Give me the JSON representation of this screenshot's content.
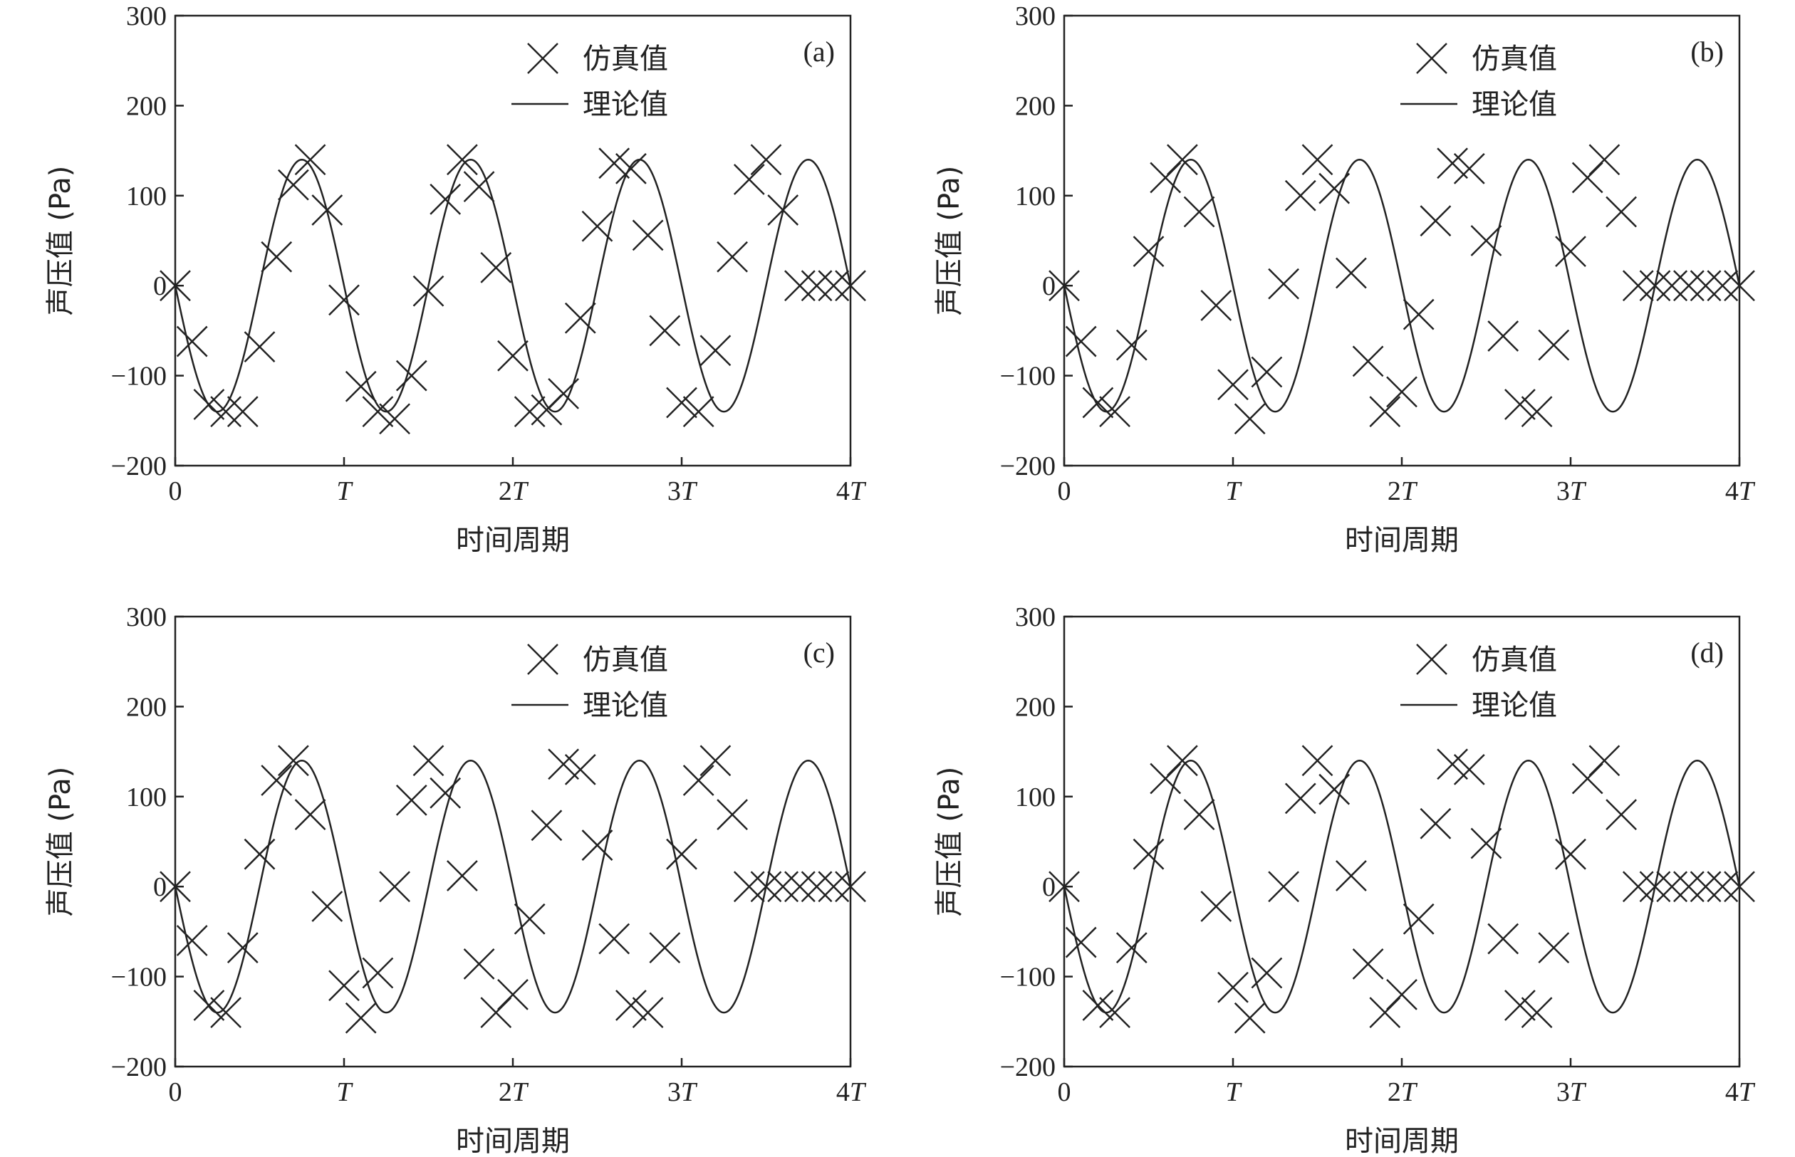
{
  "chart_data": [
    {
      "type": "line",
      "panel_label": "(a)",
      "xlabel": "时间周期",
      "ylabel": "声压值 (Pa)",
      "xlim": [
        0,
        4
      ],
      "ylim": [
        -200,
        300
      ],
      "x_ticks": [
        {
          "value": 0,
          "coef": "0",
          "sym": ""
        },
        {
          "value": 1,
          "coef": "",
          "sym": "T"
        },
        {
          "value": 2,
          "coef": "2",
          "sym": "T"
        },
        {
          "value": 3,
          "coef": "3",
          "sym": "T"
        },
        {
          "value": 4,
          "coef": "4",
          "sym": "T"
        }
      ],
      "y_ticks": [
        300,
        200,
        100,
        0,
        -100,
        -200
      ],
      "y_tick_labels": [
        "300",
        "200",
        "100",
        "0",
        "−100",
        "−200"
      ],
      "legend": {
        "position": "top-right"
      },
      "grid": false,
      "series": [
        {
          "name": "仿真值",
          "kind": "markers",
          "marker": "x",
          "x": [
            0,
            0.1,
            0.2,
            0.3,
            0.4,
            0.5,
            0.6,
            0.7,
            0.8,
            0.9,
            1.0,
            1.1,
            1.2,
            1.3,
            1.4,
            1.5,
            1.6,
            1.7,
            1.8,
            1.9,
            2.0,
            2.1,
            2.2,
            2.3,
            2.4,
            2.5,
            2.6,
            2.7,
            2.8,
            2.9,
            3.0,
            3.1,
            3.2,
            3.3,
            3.4,
            3.5,
            3.6,
            3.7,
            3.8,
            3.9,
            4.0
          ],
          "y": [
            0,
            -62,
            -132,
            -140,
            -140,
            -68,
            32,
            112,
            140,
            84,
            -16,
            -112,
            -140,
            -148,
            -100,
            -6,
            96,
            140,
            110,
            20,
            -78,
            -140,
            -138,
            -120,
            -36,
            66,
            136,
            130,
            56,
            -50,
            -130,
            -140,
            -72,
            32,
            118,
            140,
            84,
            0,
            0,
            0,
            0
          ]
        },
        {
          "name": "理论值",
          "kind": "line",
          "amplitude": 140,
          "phase_deg": 0,
          "period": 1
        }
      ]
    },
    {
      "type": "line",
      "panel_label": "(b)",
      "xlabel": "时间周期",
      "ylabel": "声压值 (Pa)",
      "xlim": [
        0,
        4
      ],
      "ylim": [
        -200,
        300
      ],
      "x_ticks": [
        {
          "value": 0,
          "coef": "0",
          "sym": ""
        },
        {
          "value": 1,
          "coef": "",
          "sym": "T"
        },
        {
          "value": 2,
          "coef": "2",
          "sym": "T"
        },
        {
          "value": 3,
          "coef": "3",
          "sym": "T"
        },
        {
          "value": 4,
          "coef": "4",
          "sym": "T"
        }
      ],
      "y_ticks": [
        300,
        200,
        100,
        0,
        -100,
        -200
      ],
      "y_tick_labels": [
        "300",
        "200",
        "100",
        "0",
        "−100",
        "−200"
      ],
      "legend": {
        "position": "top-right"
      },
      "grid": false,
      "series": [
        {
          "name": "仿真值",
          "kind": "markers",
          "marker": "x",
          "x": [
            0,
            0.1,
            0.2,
            0.3,
            0.4,
            0.5,
            0.6,
            0.7,
            0.8,
            0.9,
            1.0,
            1.1,
            1.2,
            1.3,
            1.4,
            1.5,
            1.6,
            1.7,
            1.8,
            1.9,
            2.0,
            2.1,
            2.2,
            2.3,
            2.4,
            2.5,
            2.6,
            2.7,
            2.8,
            2.9,
            3.0,
            3.1,
            3.2,
            3.3,
            3.4,
            3.5,
            3.6,
            3.7,
            3.8,
            3.9,
            4.0
          ],
          "y": [
            0,
            -62,
            -130,
            -140,
            -66,
            38,
            120,
            140,
            82,
            -22,
            -110,
            -148,
            -96,
            2,
            100,
            140,
            108,
            14,
            -84,
            -140,
            -118,
            -32,
            72,
            136,
            130,
            50,
            -56,
            -132,
            -140,
            -66,
            38,
            120,
            140,
            82,
            0,
            0,
            0,
            0,
            0,
            0,
            0
          ]
        },
        {
          "name": "理论值",
          "kind": "line",
          "amplitude": 140,
          "phase_deg": 0,
          "period": 1
        }
      ]
    },
    {
      "type": "line",
      "panel_label": "(c)",
      "xlabel": "时间周期",
      "ylabel": "声压值 (Pa)",
      "xlim": [
        0,
        4
      ],
      "ylim": [
        -200,
        300
      ],
      "x_ticks": [
        {
          "value": 0,
          "coef": "0",
          "sym": ""
        },
        {
          "value": 1,
          "coef": "",
          "sym": "T"
        },
        {
          "value": 2,
          "coef": "2",
          "sym": "T"
        },
        {
          "value": 3,
          "coef": "3",
          "sym": "T"
        },
        {
          "value": 4,
          "coef": "4",
          "sym": "T"
        }
      ],
      "y_ticks": [
        300,
        200,
        100,
        0,
        -100,
        -200
      ],
      "y_tick_labels": [
        "300",
        "200",
        "100",
        "0",
        "−100",
        "−200"
      ],
      "legend": {
        "position": "top-right"
      },
      "grid": false,
      "series": [
        {
          "name": "仿真值",
          "kind": "markers",
          "marker": "x",
          "x": [
            0,
            0.1,
            0.2,
            0.3,
            0.4,
            0.5,
            0.6,
            0.7,
            0.8,
            0.9,
            1.0,
            1.1,
            1.2,
            1.3,
            1.4,
            1.5,
            1.6,
            1.7,
            1.8,
            1.9,
            2.0,
            2.1,
            2.2,
            2.3,
            2.4,
            2.5,
            2.6,
            2.7,
            2.8,
            2.9,
            3.0,
            3.1,
            3.2,
            3.3,
            3.4,
            3.5,
            3.6,
            3.7,
            3.8,
            3.9,
            4.0
          ],
          "y": [
            0,
            -60,
            -132,
            -140,
            -68,
            36,
            118,
            140,
            80,
            -22,
            -110,
            -146,
            -96,
            0,
            96,
            140,
            104,
            12,
            -86,
            -140,
            -120,
            -36,
            68,
            136,
            130,
            46,
            -58,
            -132,
            -140,
            -68,
            36,
            118,
            140,
            80,
            0,
            0,
            0,
            0,
            0,
            0,
            0
          ]
        },
        {
          "name": "理论值",
          "kind": "line",
          "amplitude": 140,
          "phase_deg": 0,
          "period": 1
        }
      ]
    },
    {
      "type": "line",
      "panel_label": "(d)",
      "xlabel": "时间周期",
      "ylabel": "声压值 (Pa)",
      "xlim": [
        0,
        4
      ],
      "ylim": [
        -200,
        300
      ],
      "x_ticks": [
        {
          "value": 0,
          "coef": "0",
          "sym": ""
        },
        {
          "value": 1,
          "coef": "",
          "sym": "T"
        },
        {
          "value": 2,
          "coef": "2",
          "sym": "T"
        },
        {
          "value": 3,
          "coef": "3",
          "sym": "T"
        },
        {
          "value": 4,
          "coef": "4",
          "sym": "T"
        }
      ],
      "y_ticks": [
        300,
        200,
        100,
        0,
        -100,
        -200
      ],
      "y_tick_labels": [
        "300",
        "200",
        "100",
        "0",
        "−100",
        "−200"
      ],
      "legend": {
        "position": "top-right"
      },
      "grid": false,
      "series": [
        {
          "name": "仿真值",
          "kind": "markers",
          "marker": "x",
          "x": [
            0,
            0.1,
            0.2,
            0.3,
            0.4,
            0.5,
            0.6,
            0.7,
            0.8,
            0.9,
            1.0,
            1.1,
            1.2,
            1.3,
            1.4,
            1.5,
            1.6,
            1.7,
            1.8,
            1.9,
            2.0,
            2.1,
            2.2,
            2.3,
            2.4,
            2.5,
            2.6,
            2.7,
            2.8,
            2.9,
            3.0,
            3.1,
            3.2,
            3.3,
            3.4,
            3.5,
            3.6,
            3.7,
            3.8,
            3.9,
            4.0
          ],
          "y": [
            0,
            -62,
            -132,
            -140,
            -68,
            36,
            120,
            140,
            80,
            -22,
            -112,
            -146,
            -96,
            0,
            98,
            140,
            108,
            12,
            -86,
            -140,
            -120,
            -36,
            70,
            136,
            130,
            48,
            -58,
            -132,
            -140,
            -68,
            36,
            120,
            140,
            80,
            0,
            0,
            0,
            0,
            0,
            0,
            0
          ]
        },
        {
          "name": "理论值",
          "kind": "line",
          "amplitude": 140,
          "phase_deg": 0,
          "period": 1
        }
      ]
    }
  ]
}
